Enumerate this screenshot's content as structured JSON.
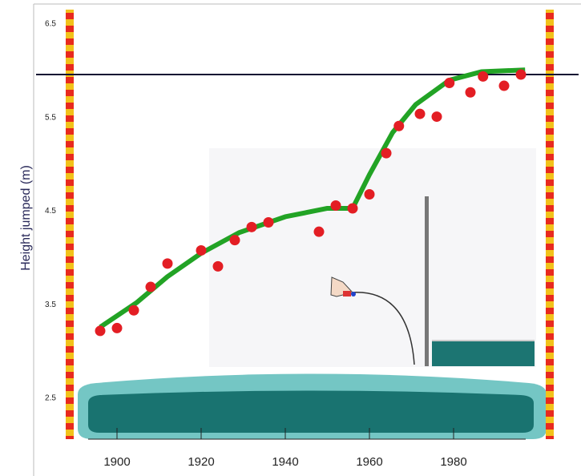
{
  "chart_data": {
    "type": "scatter",
    "y_label": "Height jumped (m)",
    "xlim": [
      1887,
      2004
    ],
    "ylim": [
      2.05,
      6.65
    ],
    "xticks": [
      1900,
      1920,
      1940,
      1960,
      1980
    ],
    "yticks": [
      2.5,
      3.5,
      4.5,
      5.5,
      6.5
    ],
    "reference_y": 5.96,
    "series": [
      {
        "type": "scatter",
        "color": "#e31e24",
        "x": [
          1896,
          1900,
          1904,
          1908,
          1912,
          1920,
          1924,
          1928,
          1932,
          1936,
          1948,
          1952,
          1956,
          1960,
          1964,
          1967,
          1972,
          1976,
          1979,
          1984,
          1987,
          1992,
          1996
        ],
        "values": [
          3.22,
          3.25,
          3.44,
          3.69,
          3.94,
          4.08,
          3.91,
          4.19,
          4.33,
          4.38,
          4.28,
          4.56,
          4.53,
          4.68,
          5.12,
          5.41,
          5.54,
          5.51,
          5.87,
          5.77,
          5.94,
          5.84,
          5.96
        ]
      },
      {
        "type": "line",
        "color": "#22a325",
        "x": [
          1896,
          1904.6,
          1912,
          1920,
          1929,
          1940,
          1950,
          1956,
          1960,
          1965.5,
          1971,
          1979,
          1986.6,
          1997
        ],
        "values": [
          3.26,
          3.52,
          3.8,
          4.05,
          4.27,
          4.44,
          4.53,
          4.53,
          4.89,
          5.34,
          5.64,
          5.9,
          5.99,
          6.01
        ]
      }
    ]
  }
}
